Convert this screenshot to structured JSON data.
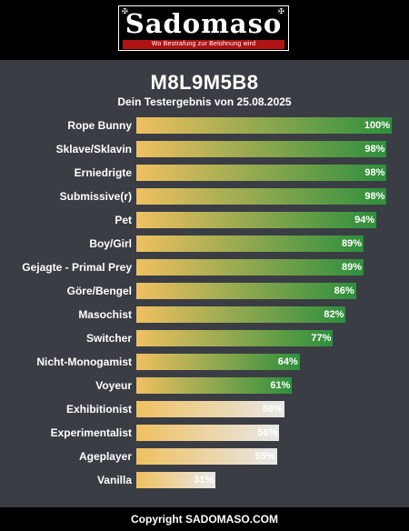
{
  "brand": {
    "name": "Sadomaso",
    "tagline": "Wo Bestrafung zur Belohnung wird"
  },
  "result": {
    "code": "M8L9M5B8",
    "date_line": "Dein Testergebnis von 25.08.2025"
  },
  "footer": {
    "copyright": "Copyright SADOMASO.COM"
  },
  "colors": {
    "bar_high_start": "#f0c060",
    "bar_high_end": "#2d8f3d",
    "bar_low_start": "#f0c060",
    "bar_low_end": "#e8e8e8"
  },
  "chart_data": {
    "type": "bar",
    "orientation": "horizontal",
    "categories": [
      "Rope Bunny",
      "Sklave/Sklavin",
      "Erniedrigte",
      "Submissive(r)",
      "Pet",
      "Boy/Girl",
      "Gejagte - Primal Prey",
      "Göre/Bengel",
      "Masochist",
      "Switcher",
      "Nicht-Monogamist",
      "Voyeur",
      "Exhibitionist",
      "Experimentalist",
      "Ageplayer",
      "Vanilla"
    ],
    "values": [
      100,
      98,
      98,
      98,
      94,
      89,
      89,
      86,
      82,
      77,
      64,
      61,
      58,
      56,
      55,
      31
    ],
    "value_labels": [
      "100%",
      "98%",
      "98%",
      "98%",
      "94%",
      "89%",
      "89%",
      "86%",
      "82%",
      "77%",
      "64%",
      "61%",
      "58%",
      "56%",
      "55%",
      "31%"
    ],
    "xlim": [
      0,
      100
    ],
    "unit": "%"
  }
}
